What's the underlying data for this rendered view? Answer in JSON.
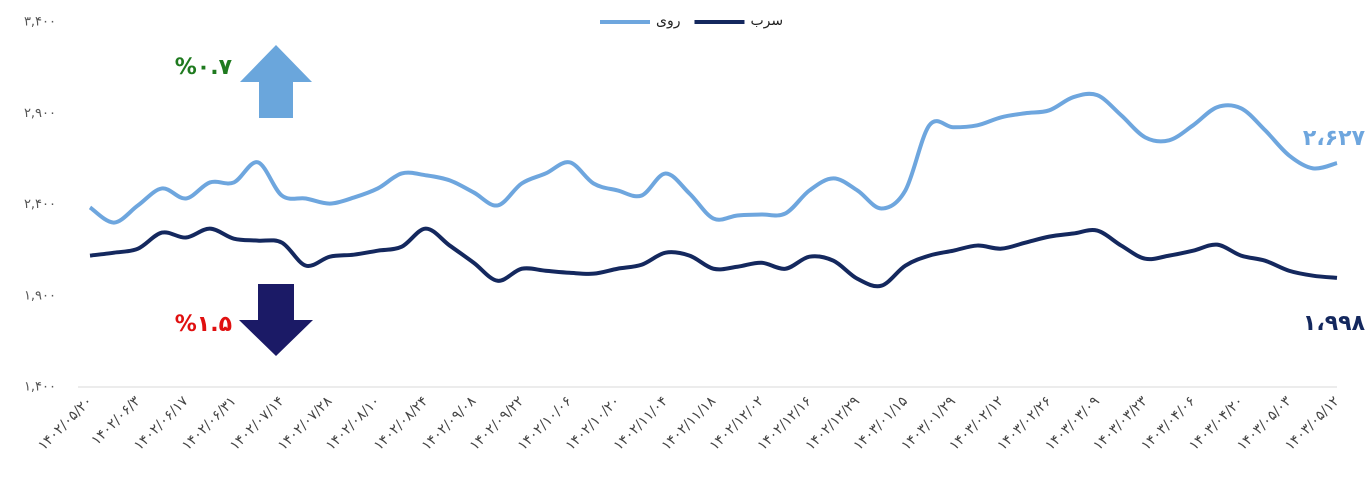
{
  "chart_data": {
    "type": "line",
    "categories": [
      "۱۴۰۲/۰۵/۲۰",
      null,
      "۱۴۰۲/۰۶/۳",
      null,
      "۱۴۰۲/۰۶/۱۷",
      null,
      "۱۴۰۲/۰۶/۳۱",
      null,
      "۱۴۰۲/۰۷/۱۴",
      null,
      "۱۴۰۲/۰۷/۲۸",
      null,
      "۱۴۰۲/۰۸/۱۰",
      null,
      "۱۴۰۲/۰۸/۲۴",
      null,
      "۱۴۰۲/۰۹/۰۸",
      null,
      "۱۴۰۲/۰۹/۲۲",
      null,
      "۱۴۰۲/۱۰/۰۶",
      null,
      "۱۴۰۲/۱۰/۲۰",
      null,
      "۱۴۰۲/۱۱/۰۴",
      null,
      "۱۴۰۲/۱۱/۱۸",
      null,
      "۱۴۰۲/۱۲/۰۲",
      null,
      "۱۴۰۲/۱۲/۱۶",
      null,
      "۱۴۰۲/۱۲/۲۹",
      null,
      "۱۴۰۳/۰۱/۱۵",
      null,
      "۱۴۰۳/۰۱/۲۹",
      null,
      "۱۴۰۳/۰۲/۱۲",
      null,
      "۱۴۰۳/۰۲/۲۶",
      null,
      "۱۴۰۳/۰۳/۰۹",
      null,
      "۱۴۰۳/۰۳/۲۳",
      null,
      "۱۴۰۳/۰۴/۰۶",
      null,
      "۱۴۰۳/۰۴/۲۰",
      null,
      "۱۴۰۳/۰۵/۰۳",
      null,
      "۱۴۰۳/۰۵/۱۲"
    ],
    "series": [
      {
        "name": "روی",
        "color": "#6ea6de",
        "values": [
          2384,
          2301,
          2395,
          2488,
          2433,
          2521,
          2521,
          2631,
          2449,
          2433,
          2405,
          2438,
          2488,
          2570,
          2560,
          2532,
          2466,
          2395,
          2515,
          2570,
          2631,
          2515,
          2477,
          2449,
          2570,
          2460,
          2323,
          2340,
          2345,
          2351,
          2477,
          2543,
          2477,
          2378,
          2477,
          2834,
          2823,
          2834,
          2878,
          2900,
          2916,
          2988,
          2999,
          2889,
          2768,
          2752,
          2834,
          2933,
          2927,
          2807,
          2669,
          2598,
          2627
        ],
        "value_labels": [
          null,
          null,
          null,
          null,
          null,
          null,
          null,
          null,
          null,
          null,
          null,
          null,
          null,
          null,
          null,
          null,
          null,
          null,
          null,
          null,
          null,
          null,
          null,
          null,
          null,
          null,
          null,
          null,
          null,
          null,
          null,
          null,
          null,
          null,
          null,
          null,
          null,
          null,
          null,
          null,
          null,
          null,
          null,
          null,
          null,
          null,
          null,
          null,
          null,
          null,
          null,
          null,
          "۲،۶۲۷"
        ]
      },
      {
        "name": "سرب",
        "color": "#14285e",
        "values": [
          2120,
          2136,
          2158,
          2246,
          2219,
          2268,
          2213,
          2202,
          2191,
          2065,
          2114,
          2125,
          2147,
          2169,
          2268,
          2175,
          2081,
          1982,
          2048,
          2037,
          2026,
          2021,
          2048,
          2070,
          2136,
          2120,
          2048,
          2059,
          2081,
          2048,
          2114,
          2092,
          1993,
          1955,
          2065,
          2120,
          2147,
          2175,
          2158,
          2191,
          2224,
          2241,
          2257,
          2175,
          2103,
          2120,
          2147,
          2180,
          2120,
          2092,
          2037,
          2010,
          1998
        ],
        "value_labels": [
          null,
          null,
          null,
          null,
          null,
          null,
          null,
          null,
          null,
          null,
          null,
          null,
          null,
          null,
          null,
          null,
          null,
          null,
          null,
          null,
          null,
          null,
          null,
          null,
          null,
          null,
          null,
          null,
          null,
          null,
          null,
          null,
          null,
          null,
          null,
          null,
          null,
          null,
          null,
          null,
          null,
          null,
          null,
          null,
          null,
          null,
          null,
          null,
          null,
          null,
          null,
          null,
          "۱،۹۹۸"
        ]
      }
    ],
    "annotations": [
      {
        "text": "%۰.۷"
      },
      {
        "text": "%۱.۵"
      }
    ],
    "ylim": [
      1400,
      3400
    ],
    "yticks": [
      {
        "value": 1400,
        "label": "۱,۴۰۰"
      },
      {
        "value": 1900,
        "label": "۱,۹۰۰"
      },
      {
        "value": 2400,
        "label": "۲,۴۰۰"
      },
      {
        "value": 2900,
        "label": "۲,۹۰۰"
      },
      {
        "value": 3400,
        "label": "۳,۴۰۰"
      }
    ],
    "grid": false
  }
}
